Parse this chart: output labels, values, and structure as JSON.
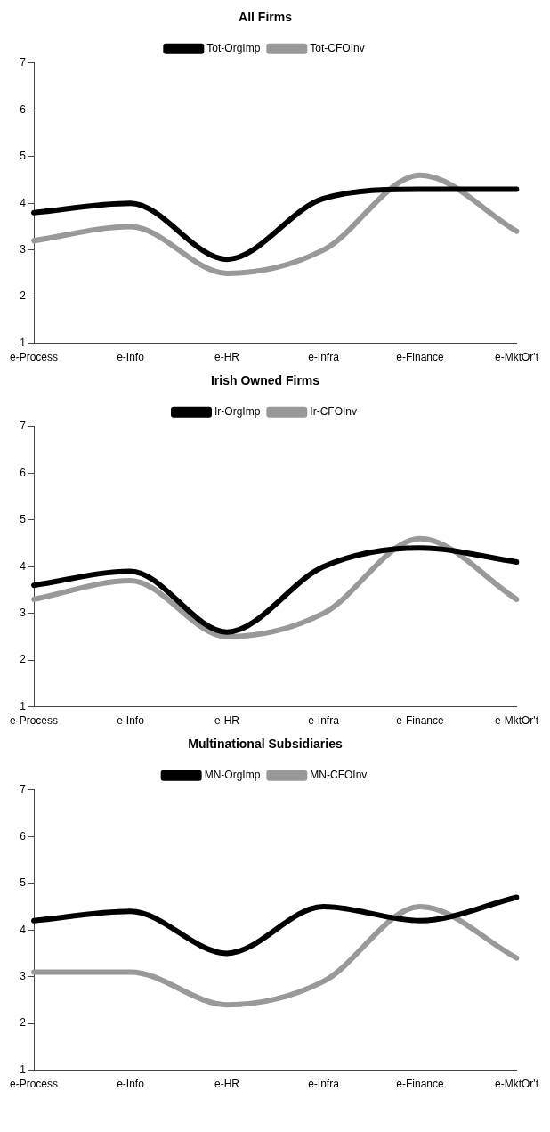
{
  "chart_data": [
    {
      "type": "line",
      "title": "All Firms",
      "categories": [
        "e-Process",
        "e-Info",
        "e-HR",
        "e-Infra",
        "e-Finance",
        "e-MktOr't"
      ],
      "series": [
        {
          "name": "Tot-OrgImp",
          "color": "#000000",
          "values": [
            3.8,
            4.0,
            2.8,
            4.1,
            4.3,
            4.3
          ]
        },
        {
          "name": "Tot-CFOInv",
          "color": "#999999",
          "values": [
            3.2,
            3.5,
            2.5,
            3.0,
            4.6,
            3.4
          ]
        }
      ],
      "ylim": [
        1,
        7
      ],
      "yticks": [
        1,
        2,
        3,
        4,
        5,
        6,
        7
      ],
      "grid": false,
      "legend": "top",
      "marker": "none"
    },
    {
      "type": "line",
      "title": "Irish Owned Firms",
      "categories": [
        "e-Process",
        "e-Info",
        "e-HR",
        "e-Infra",
        "e-Finance",
        "e-MktOr't"
      ],
      "series": [
        {
          "name": "Ir-OrgImp",
          "color": "#000000",
          "values": [
            3.6,
            3.9,
            2.6,
            4.0,
            4.4,
            4.1
          ]
        },
        {
          "name": "Ir-CFOInv",
          "color": "#999999",
          "values": [
            3.3,
            3.7,
            2.5,
            3.0,
            4.6,
            3.3
          ]
        }
      ],
      "ylim": [
        1,
        7
      ],
      "yticks": [
        1,
        2,
        3,
        4,
        5,
        6,
        7
      ],
      "grid": false,
      "legend": "top",
      "marker": "none"
    },
    {
      "type": "line",
      "title": "Multinational Subsidiaries",
      "categories": [
        "e-Process",
        "e-Info",
        "e-HR",
        "e-Infra",
        "e-Finance",
        "e-MktOr't"
      ],
      "series": [
        {
          "name": "MN-OrgImp",
          "color": "#000000",
          "values": [
            4.2,
            4.4,
            3.5,
            4.5,
            4.2,
            4.7
          ]
        },
        {
          "name": "MN-CFOInv",
          "color": "#999999",
          "values": [
            3.1,
            3.1,
            2.4,
            2.9,
            4.5,
            3.4
          ]
        }
      ],
      "ylim": [
        1,
        7
      ],
      "yticks": [
        1,
        2,
        3,
        4,
        5,
        6,
        7
      ],
      "grid": false,
      "legend": "top",
      "marker": "none"
    }
  ]
}
